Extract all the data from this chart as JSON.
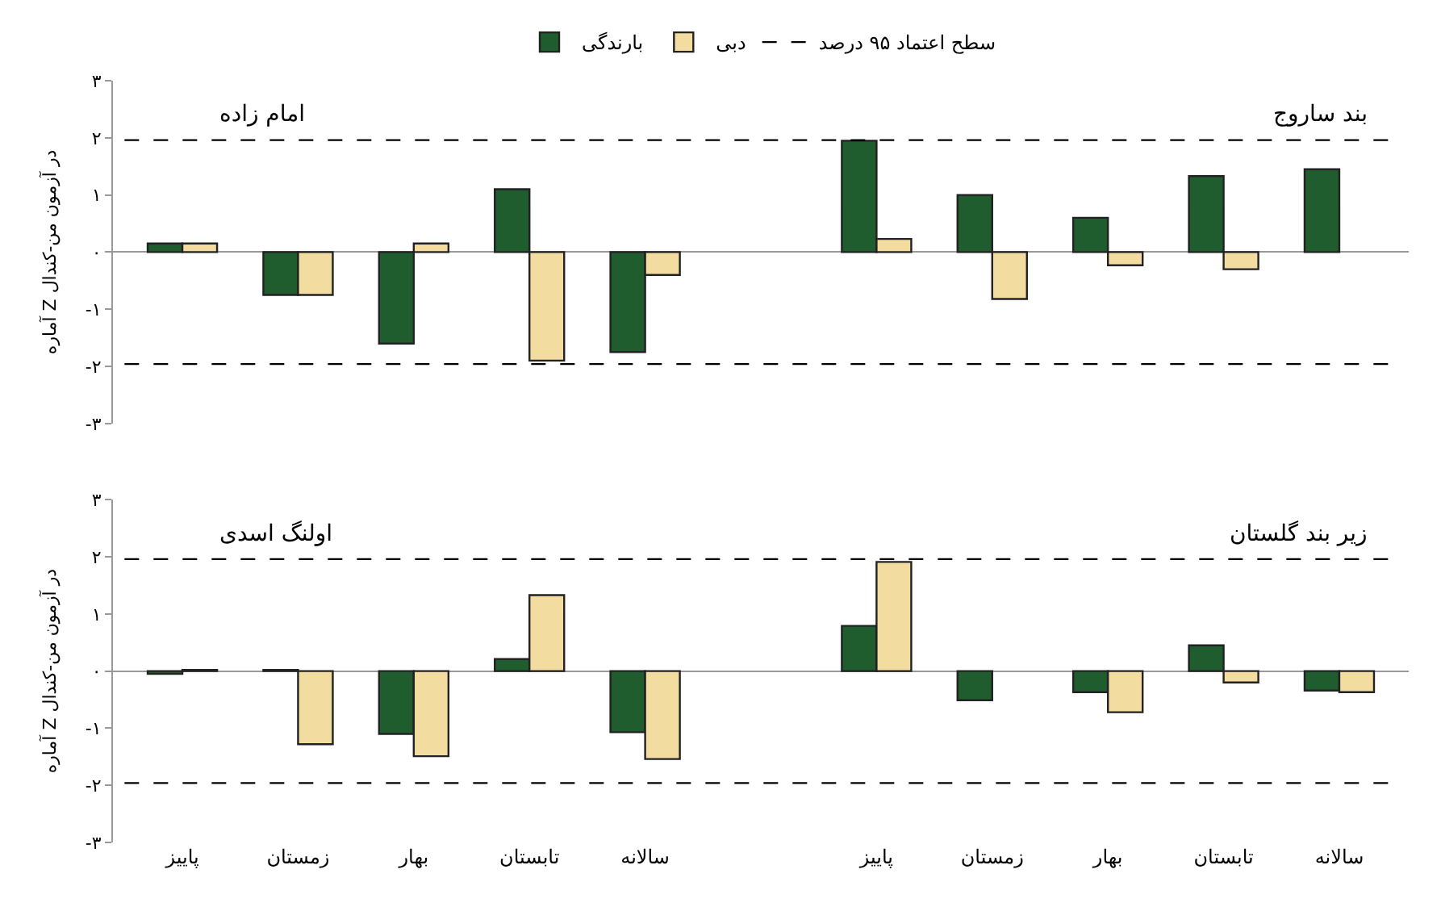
{
  "chart_data": [
    {
      "type": "bar",
      "categories": [
        null,
        null,
        null,
        null,
        null,
        null,
        null,
        null,
        null,
        null,
        null
      ],
      "series": [
        {
          "name": "بارندگی",
          "color": "#1f5c2e",
          "values": [
            0.15,
            -0.75,
            -1.6,
            1.1,
            -1.75,
            null,
            1.95,
            1.0,
            0.6,
            1.33,
            1.45
          ]
        },
        {
          "name": "دبی",
          "color": "#f2dca0",
          "values": [
            0.15,
            -0.75,
            0.15,
            -1.9,
            -0.4,
            null,
            0.23,
            -0.82,
            -0.23,
            -0.3,
            null
          ]
        }
      ],
      "ylabel": "آماره Z در آزمون من-کندال",
      "annotations": [
        "امام زاده",
        "بند ساروج"
      ],
      "ylim": [
        -3,
        3
      ],
      "yticks": [
        {
          "value": 3,
          "label": "۳"
        },
        {
          "value": 2,
          "label": "۲"
        },
        {
          "value": 1,
          "label": "۱"
        },
        {
          "value": 0,
          "label": "۰"
        },
        {
          "value": -1,
          "label": "-۱"
        },
        {
          "value": -2,
          "label": "-۲"
        },
        {
          "value": -3,
          "label": "-۳"
        }
      ],
      "ref_lines": [
        {
          "axis": "y",
          "value": 1.96,
          "label": "سطح اعتماد ۹۵ درصد",
          "color": "#000000",
          "line_style": "dashed"
        },
        {
          "axis": "y",
          "value": -1.96,
          "color": "#000000",
          "line_style": "dashed"
        }
      ],
      "tick_labels": "y",
      "legend": "top"
    },
    {
      "type": "bar",
      "categories": [
        "پاییز",
        "زمستان",
        "بهار",
        "تابستان",
        "سالانه",
        null,
        "پاییز",
        "زمستان",
        "بهار",
        "تابستان",
        "سالانه"
      ],
      "series": [
        {
          "color": "#1f5c2e",
          "values": [
            -0.05,
            0.02,
            -1.1,
            0.21,
            -1.07,
            null,
            0.79,
            -0.51,
            -0.37,
            0.45,
            -0.34
          ]
        },
        {
          "color": "#f2dca0",
          "values": [
            0.02,
            -1.28,
            -1.49,
            1.33,
            -1.54,
            null,
            1.91,
            null,
            -0.72,
            -0.2,
            -0.37
          ]
        }
      ],
      "ylabel": "آماره Z در آزمون من-کندال",
      "annotations": [
        "اولنگ اسدی",
        "زیر بند گلستان"
      ],
      "ylim": [
        -3,
        3
      ],
      "yticks": [
        {
          "value": 3,
          "label": "۳"
        },
        {
          "value": 2,
          "label": "۲"
        },
        {
          "value": 1,
          "label": "۱"
        },
        {
          "value": 0,
          "label": "۰"
        },
        {
          "value": -1,
          "label": "-۱"
        },
        {
          "value": -2,
          "label": "-۲"
        },
        {
          "value": -3,
          "label": "-۳"
        }
      ],
      "ref_lines": [
        {
          "axis": "y",
          "value": 1.96,
          "color": "#000000",
          "line_style": "dashed"
        },
        {
          "axis": "y",
          "value": -1.96,
          "color": "#000000",
          "line_style": "dashed"
        }
      ],
      "legend": false
    }
  ]
}
